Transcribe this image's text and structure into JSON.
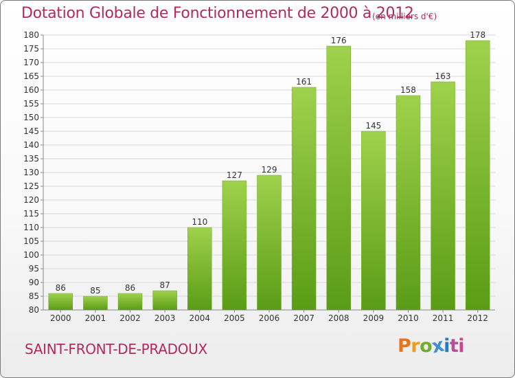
{
  "header": {
    "title": "Dotation Globale de Fonctionnement de 2000 à 2012",
    "unit": "(en milliers d'€)"
  },
  "footer": {
    "commune": "SAINT-FRONT-DE-PRADOUX",
    "logo_letters": [
      "P",
      "r",
      "o",
      "x",
      "i",
      "t",
      "i"
    ]
  },
  "colors": {
    "title": "#b02a5e",
    "bar_top": "#9fd14c",
    "bar_bottom": "#5a9c16",
    "grid": "#d8d8d8",
    "axis": "#888888",
    "text": "#333333"
  },
  "chart_data": {
    "type": "bar",
    "title": "Dotation Globale de Fonctionnement de 2000 à 2012",
    "subtitle": "(en milliers d'€)",
    "categories": [
      "2000",
      "2001",
      "2002",
      "2003",
      "2004",
      "2005",
      "2006",
      "2007",
      "2008",
      "2009",
      "2010",
      "2011",
      "2012"
    ],
    "values": [
      86,
      85,
      86,
      87,
      110,
      127,
      129,
      161,
      176,
      145,
      158,
      163,
      178
    ],
    "ylim": [
      80,
      180
    ],
    "ytick_step": 5,
    "grid": true,
    "data_labels": true
  }
}
